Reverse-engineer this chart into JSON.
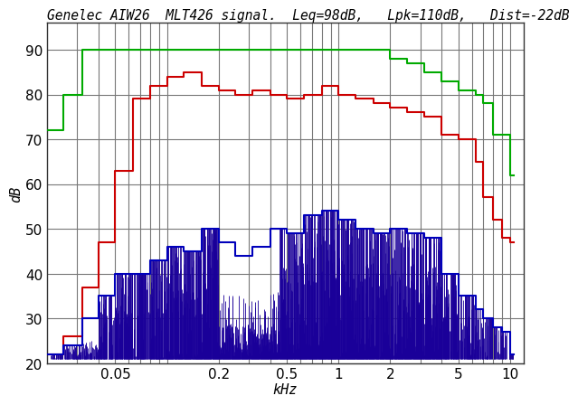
{
  "title": "Genelec AIW26  MLT426 signal.  Leq=98dB,   Lpk=110dB,   Dist=-22dB",
  "ylabel": "dB",
  "xlabel": "kHz",
  "xlim_log": [
    0.02,
    12.0
  ],
  "ylim": [
    20,
    96
  ],
  "yticks": [
    20,
    30,
    40,
    50,
    60,
    70,
    80,
    90
  ],
  "background_color": "#ffffff",
  "grid_color": "#777777",
  "green_color": "#00aa00",
  "red_color": "#cc0000",
  "blue_step_color": "#0000bb",
  "blue_fill_color": "#1a0099",
  "title_fontsize": 10.5,
  "axis_label_fontsize": 11,
  "green_steps": [
    [
      0.02,
      72
    ],
    [
      0.025,
      72
    ],
    [
      0.025,
      80
    ],
    [
      0.032,
      80
    ],
    [
      0.032,
      90
    ],
    [
      0.63,
      90
    ],
    [
      0.63,
      90
    ],
    [
      2.0,
      90
    ],
    [
      2.0,
      88
    ],
    [
      2.5,
      88
    ],
    [
      2.5,
      87
    ],
    [
      3.15,
      87
    ],
    [
      3.15,
      85
    ],
    [
      4.0,
      85
    ],
    [
      4.0,
      83
    ],
    [
      5.0,
      83
    ],
    [
      5.0,
      81
    ],
    [
      6.3,
      81
    ],
    [
      6.3,
      80
    ],
    [
      7.0,
      80
    ],
    [
      7.0,
      78
    ],
    [
      8.0,
      78
    ],
    [
      8.0,
      71
    ],
    [
      10.0,
      71
    ],
    [
      10.0,
      62
    ],
    [
      10.5,
      62
    ]
  ],
  "red_steps": [
    [
      0.02,
      22
    ],
    [
      0.025,
      22
    ],
    [
      0.025,
      26
    ],
    [
      0.032,
      26
    ],
    [
      0.032,
      37
    ],
    [
      0.04,
      37
    ],
    [
      0.04,
      47
    ],
    [
      0.05,
      47
    ],
    [
      0.05,
      63
    ],
    [
      0.063,
      63
    ],
    [
      0.063,
      79
    ],
    [
      0.08,
      79
    ],
    [
      0.08,
      82
    ],
    [
      0.1,
      82
    ],
    [
      0.1,
      84
    ],
    [
      0.125,
      84
    ],
    [
      0.125,
      85
    ],
    [
      0.16,
      85
    ],
    [
      0.16,
      82
    ],
    [
      0.2,
      82
    ],
    [
      0.2,
      81
    ],
    [
      0.25,
      81
    ],
    [
      0.25,
      80
    ],
    [
      0.315,
      80
    ],
    [
      0.315,
      81
    ],
    [
      0.4,
      81
    ],
    [
      0.4,
      80
    ],
    [
      0.5,
      80
    ],
    [
      0.5,
      79
    ],
    [
      0.63,
      79
    ],
    [
      0.63,
      80
    ],
    [
      0.8,
      80
    ],
    [
      0.8,
      82
    ],
    [
      1.0,
      82
    ],
    [
      1.0,
      80
    ],
    [
      1.25,
      80
    ],
    [
      1.25,
      79
    ],
    [
      1.6,
      79
    ],
    [
      1.6,
      78
    ],
    [
      2.0,
      78
    ],
    [
      2.0,
      77
    ],
    [
      2.5,
      77
    ],
    [
      2.5,
      76
    ],
    [
      3.15,
      76
    ],
    [
      3.15,
      75
    ],
    [
      4.0,
      75
    ],
    [
      4.0,
      71
    ],
    [
      5.0,
      71
    ],
    [
      5.0,
      70
    ],
    [
      6.3,
      70
    ],
    [
      6.3,
      65
    ],
    [
      7.0,
      65
    ],
    [
      7.0,
      57
    ],
    [
      8.0,
      57
    ],
    [
      8.0,
      52
    ],
    [
      9.0,
      52
    ],
    [
      9.0,
      48
    ],
    [
      10.0,
      48
    ],
    [
      10.0,
      47
    ],
    [
      10.5,
      47
    ]
  ],
  "blue_steps": [
    [
      0.02,
      22
    ],
    [
      0.025,
      22
    ],
    [
      0.025,
      24
    ],
    [
      0.032,
      24
    ],
    [
      0.032,
      30
    ],
    [
      0.04,
      30
    ],
    [
      0.04,
      35
    ],
    [
      0.05,
      35
    ],
    [
      0.05,
      40
    ],
    [
      0.063,
      40
    ],
    [
      0.063,
      40
    ],
    [
      0.08,
      40
    ],
    [
      0.08,
      43
    ],
    [
      0.1,
      43
    ],
    [
      0.1,
      46
    ],
    [
      0.125,
      46
    ],
    [
      0.125,
      45
    ],
    [
      0.16,
      45
    ],
    [
      0.16,
      50
    ],
    [
      0.2,
      50
    ],
    [
      0.2,
      47
    ],
    [
      0.25,
      47
    ],
    [
      0.25,
      44
    ],
    [
      0.315,
      44
    ],
    [
      0.315,
      46
    ],
    [
      0.4,
      46
    ],
    [
      0.4,
      50
    ],
    [
      0.5,
      50
    ],
    [
      0.5,
      49
    ],
    [
      0.63,
      49
    ],
    [
      0.63,
      53
    ],
    [
      0.8,
      53
    ],
    [
      0.8,
      54
    ],
    [
      1.0,
      54
    ],
    [
      1.0,
      52
    ],
    [
      1.25,
      52
    ],
    [
      1.25,
      50
    ],
    [
      1.6,
      50
    ],
    [
      1.6,
      49
    ],
    [
      2.0,
      49
    ],
    [
      2.0,
      50
    ],
    [
      2.5,
      50
    ],
    [
      2.5,
      49
    ],
    [
      3.15,
      49
    ],
    [
      3.15,
      48
    ],
    [
      4.0,
      48
    ],
    [
      4.0,
      40
    ],
    [
      5.0,
      40
    ],
    [
      5.0,
      35
    ],
    [
      6.3,
      35
    ],
    [
      6.3,
      32
    ],
    [
      7.0,
      32
    ],
    [
      7.0,
      30
    ],
    [
      8.0,
      30
    ],
    [
      8.0,
      28
    ],
    [
      9.0,
      28
    ],
    [
      9.0,
      27
    ],
    [
      10.0,
      27
    ],
    [
      10.0,
      22
    ],
    [
      10.5,
      22
    ]
  ],
  "spectrum_seed": 12345,
  "spectrum_n": 2000,
  "spectrum_base": 21,
  "x_major_ticks": [
    0.05,
    0.1,
    0.2,
    0.5,
    1,
    2,
    5,
    10
  ],
  "x_minor_ticks": [
    0.03,
    0.04,
    0.06,
    0.07,
    0.08,
    0.09,
    0.3,
    0.4,
    0.6,
    0.7,
    0.8,
    0.9,
    3,
    4,
    6,
    7,
    8,
    9
  ]
}
